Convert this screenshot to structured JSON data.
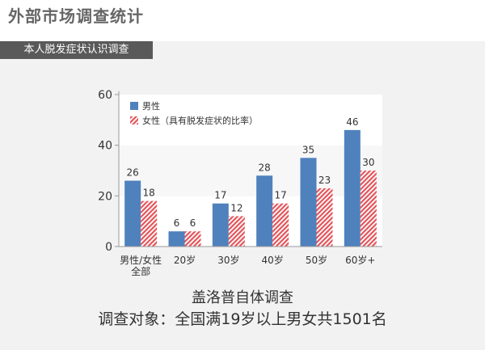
{
  "page": {
    "title": "外部市场调查统计",
    "section_label": "本人脱发症状认识调查"
  },
  "footer": {
    "source": "盖洛普自体调查",
    "scope": "调查对象：全国满19岁以上男女共1501名"
  },
  "colors": {
    "male": "#4f81bd",
    "female": "#e3545a",
    "axis": "#999999",
    "text": "#333333"
  },
  "chart_data": {
    "type": "bar",
    "categories": [
      "男性/女性\n全部",
      "20岁",
      "30岁",
      "40岁",
      "50岁",
      "60岁+"
    ],
    "series": [
      {
        "name": "男性",
        "values": [
          26,
          6,
          17,
          28,
          35,
          46
        ],
        "pattern": "solid"
      },
      {
        "name": "女性（具有脱发症状的比率）",
        "values": [
          18,
          6,
          12,
          17,
          23,
          30
        ],
        "pattern": "hatched"
      }
    ],
    "y_ticks": [
      0,
      20,
      40,
      60
    ],
    "ylim": [
      0,
      60
    ],
    "grid": false,
    "legend_position": "top-left",
    "data_labels": true
  }
}
